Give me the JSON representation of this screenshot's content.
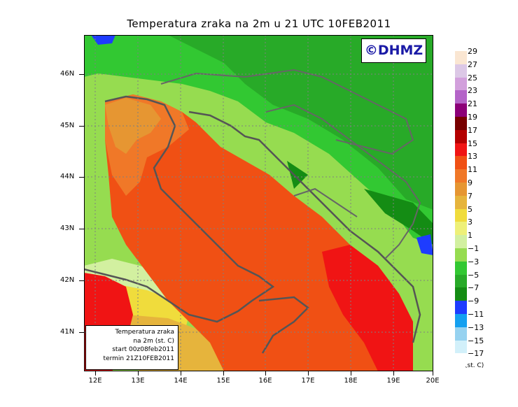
{
  "title": "Temperatura zraka na 2m u 21 UTC 10FEB2011",
  "logo_text": "©DHMZ",
  "info_box": {
    "line1": "Temperatura zraka",
    "line2": "na 2m (st. C)",
    "line3": "start 00z08feb2011",
    "line4": "termin 21Z10FEB2011"
  },
  "lat_labels": [
    "46N",
    "45N",
    "44N",
    "43N",
    "42N",
    "41N"
  ],
  "lon_labels": [
    "12E",
    "13E",
    "14E",
    "15E",
    "16E",
    "17E",
    "18E",
    "19E",
    "20E"
  ],
  "legend": {
    "unit": "(st. C)",
    "labels": [
      "29",
      "27",
      "25",
      "23",
      "21",
      "19",
      "17",
      "15",
      "13",
      "11",
      "9",
      "7",
      "5",
      "3",
      "1",
      "−1",
      "−3",
      "−5",
      "−7",
      "−9",
      "−11",
      "−13",
      "−15",
      "−17"
    ],
    "colors": [
      "#fae6d2",
      "#dcc8e6",
      "#d2a0dc",
      "#b464c8",
      "#8c0078",
      "#780000",
      "#b40000",
      "#f01414",
      "#f05014",
      "#f07828",
      "#e69632",
      "#e6b43c",
      "#f0dc3c",
      "#eef078",
      "#d2f0a0",
      "#96dc50",
      "#32c832",
      "#28aa28",
      "#148c14",
      "#1e3cff",
      "#14a0f0",
      "#96d2f0",
      "#d2f0fa",
      "#ffffff"
    ]
  }
}
